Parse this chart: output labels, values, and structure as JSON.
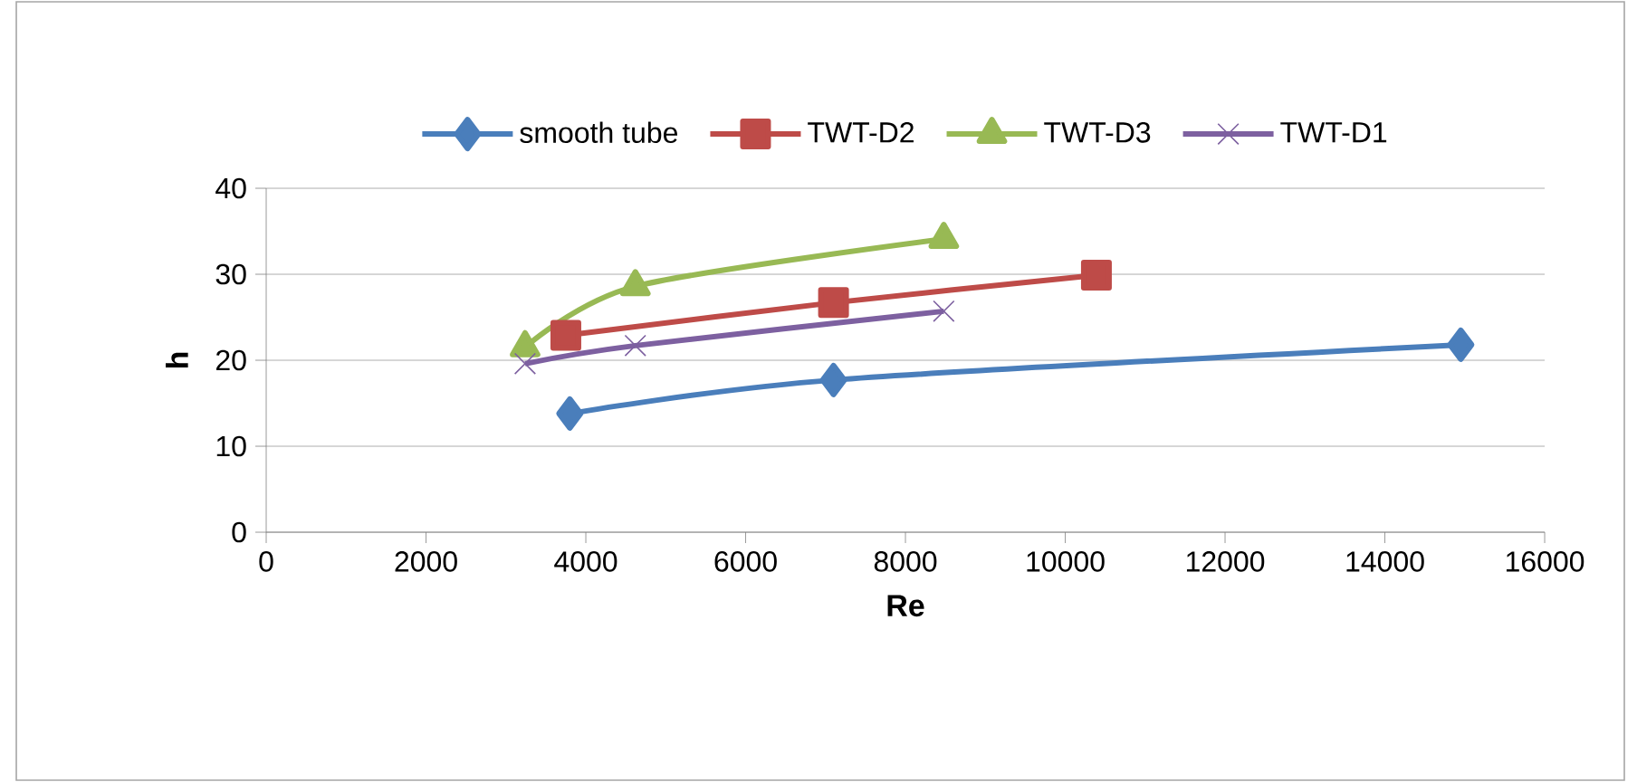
{
  "chart_data": {
    "type": "line",
    "xlabel": "Re",
    "ylabel": "h",
    "xlim": [
      0,
      16000
    ],
    "ylim": [
      0,
      40
    ],
    "xticks": [
      0,
      2000,
      4000,
      6000,
      8000,
      10000,
      12000,
      14000,
      16000
    ],
    "yticks": [
      0,
      10,
      20,
      30,
      40
    ],
    "grid": "y",
    "legend": "top",
    "line_style": "solid",
    "series": [
      {
        "name": "smooth tube",
        "color": "#4a7ebb",
        "marker": "diamond",
        "x": [
          3800,
          7100,
          14950
        ],
        "values": [
          13.8,
          17.7,
          21.8
        ]
      },
      {
        "name": "TWT-D2",
        "color": "#be4b48",
        "marker": "square",
        "x": [
          3750,
          7100,
          10390
        ],
        "values": [
          22.9,
          26.7,
          29.9
        ]
      },
      {
        "name": "TWT-D3",
        "color": "#98b954",
        "marker": "triangle",
        "x": [
          3240,
          4620,
          8480
        ],
        "values": [
          21.5,
          28.6,
          34.1
        ]
      },
      {
        "name": "TWT-D1",
        "color": "#7d60a0",
        "marker": "cross",
        "x": [
          3240,
          4620,
          8480
        ],
        "values": [
          19.6,
          21.7,
          25.7
        ]
      }
    ]
  }
}
